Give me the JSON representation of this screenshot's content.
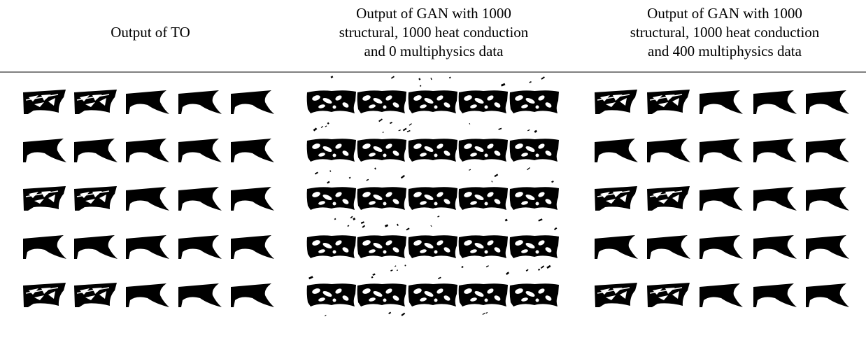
{
  "table": {
    "headers": [
      [
        "Output of TO"
      ],
      [
        "Output of GAN with 1000",
        "structural, 1000 heat conduction",
        "and 0 multiphysics data"
      ],
      [
        "Output of GAN with 1000",
        "structural, 1000 heat conduction",
        "and 400 multiphysics data"
      ]
    ]
  }
}
